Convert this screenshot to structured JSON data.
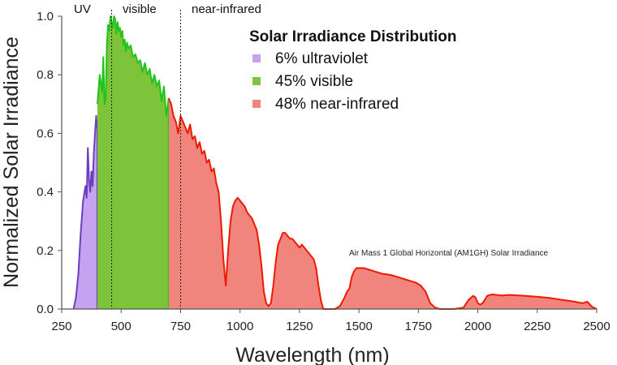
{
  "chart_data": {
    "type": "area",
    "title": "Solar Irradiance Distribution",
    "xlabel": "Wavelength (nm)",
    "ylabel": "Normalized Solar Irradiance",
    "xlim": [
      250,
      2500
    ],
    "ylim": [
      0,
      1.0
    ],
    "x_ticks": [
      "250",
      "500",
      "750",
      "1000",
      "1250",
      "1500",
      "1750",
      "2000",
      "2250",
      "2500"
    ],
    "y_ticks": [
      "0.0",
      "0.2",
      "0.4",
      "0.6",
      "0.8",
      "1.0"
    ],
    "x_tick_values": [
      250,
      500,
      750,
      1000,
      1250,
      1500,
      1750,
      2000,
      2250,
      2500
    ],
    "y_tick_values": [
      0,
      0.2,
      0.4,
      0.6,
      0.8,
      1.0
    ],
    "grid": false,
    "legend_position": "top-right",
    "region_labels": [
      {
        "text": "UV",
        "x": 330
      },
      {
        "text": "visible",
        "x": 460
      },
      {
        "text": "near-infrared",
        "x": 720
      }
    ],
    "dividers_nm": [
      460,
      750
    ],
    "annotation": "Air Mass 1 Global Horizontal (AM1GH) Solar Irradiance",
    "series": [
      {
        "name": "ultraviolet",
        "legend": "6% ultraviolet",
        "percent": "6%",
        "fill": "#c6a2f0",
        "stroke": "#6a3fbf",
        "x": [
          300,
          310,
          320,
          330,
          340,
          350,
          355,
          360,
          365,
          370,
          375,
          380,
          385,
          390,
          395,
          400
        ],
        "y": [
          0,
          0.04,
          0.12,
          0.26,
          0.37,
          0.42,
          0.38,
          0.55,
          0.44,
          0.4,
          0.47,
          0.42,
          0.53,
          0.6,
          0.66,
          0.61
        ]
      },
      {
        "name": "visible",
        "legend": "45% visible",
        "percent": "45%",
        "fill": "#7ec43a",
        "stroke": "#22c31c",
        "x": [
          400,
          410,
          420,
          425,
          430,
          435,
          440,
          445,
          450,
          455,
          460,
          465,
          470,
          475,
          480,
          485,
          490,
          495,
          500,
          505,
          510,
          515,
          520,
          525,
          530,
          540,
          550,
          560,
          570,
          580,
          590,
          600,
          610,
          620,
          630,
          640,
          650,
          660,
          670,
          680,
          690,
          700
        ],
        "y": [
          0.7,
          0.8,
          0.74,
          0.86,
          0.7,
          0.72,
          0.9,
          0.97,
          0.95,
          1.0,
          0.98,
          0.96,
          1.0,
          0.99,
          0.94,
          0.98,
          0.95,
          0.96,
          0.93,
          0.95,
          0.9,
          0.92,
          0.88,
          0.91,
          0.89,
          0.9,
          0.86,
          0.87,
          0.84,
          0.85,
          0.81,
          0.84,
          0.8,
          0.82,
          0.77,
          0.8,
          0.76,
          0.78,
          0.71,
          0.76,
          0.66,
          0.72
        ]
      },
      {
        "name": "near-infrared",
        "legend": "48% near-infrared",
        "percent": "48%",
        "fill": "#f2847e",
        "stroke": "#ee1a00",
        "x": [
          700,
          710,
          720,
          730,
          740,
          750,
          760,
          770,
          780,
          790,
          800,
          810,
          820,
          830,
          840,
          850,
          860,
          870,
          880,
          890,
          900,
          910,
          920,
          930,
          940,
          950,
          960,
          970,
          980,
          990,
          1000,
          1010,
          1020,
          1030,
          1040,
          1050,
          1060,
          1070,
          1080,
          1090,
          1100,
          1110,
          1120,
          1130,
          1140,
          1150,
          1160,
          1170,
          1180,
          1190,
          1200,
          1210,
          1220,
          1230,
          1240,
          1250,
          1260,
          1270,
          1280,
          1290,
          1300,
          1310,
          1320,
          1330,
          1340,
          1350,
          1360,
          1380,
          1400,
          1420,
          1440,
          1450,
          1460,
          1470,
          1480,
          1490,
          1500,
          1520,
          1540,
          1560,
          1580,
          1600,
          1620,
          1640,
          1660,
          1680,
          1700,
          1720,
          1740,
          1760,
          1780,
          1800,
          1820,
          1840,
          1860,
          1900,
          1940,
          1960,
          1980,
          1990,
          2000,
          2010,
          2020,
          2040,
          2060,
          2080,
          2100,
          2130,
          2160,
          2200,
          2250,
          2300,
          2350,
          2400,
          2440,
          2460,
          2480,
          2500
        ],
        "y": [
          0.72,
          0.7,
          0.66,
          0.64,
          0.6,
          0.66,
          0.64,
          0.62,
          0.6,
          0.63,
          0.58,
          0.59,
          0.55,
          0.57,
          0.53,
          0.54,
          0.5,
          0.51,
          0.47,
          0.48,
          0.43,
          0.4,
          0.3,
          0.17,
          0.08,
          0.2,
          0.3,
          0.35,
          0.37,
          0.38,
          0.37,
          0.36,
          0.35,
          0.33,
          0.32,
          0.31,
          0.29,
          0.27,
          0.22,
          0.15,
          0.06,
          0.02,
          0.01,
          0.02,
          0.08,
          0.16,
          0.22,
          0.24,
          0.26,
          0.26,
          0.25,
          0.24,
          0.24,
          0.23,
          0.22,
          0.21,
          0.22,
          0.21,
          0.2,
          0.19,
          0.18,
          0.17,
          0.14,
          0.08,
          0.03,
          0.0,
          0.0,
          0.0,
          0.0,
          0.01,
          0.04,
          0.06,
          0.07,
          0.11,
          0.13,
          0.14,
          0.14,
          0.14,
          0.135,
          0.13,
          0.125,
          0.12,
          0.118,
          0.115,
          0.11,
          0.105,
          0.1,
          0.095,
          0.09,
          0.08,
          0.06,
          0.02,
          0.005,
          0.0,
          0.0,
          0.0,
          0.005,
          0.03,
          0.045,
          0.04,
          0.02,
          0.015,
          0.02,
          0.045,
          0.05,
          0.048,
          0.046,
          0.048,
          0.047,
          0.045,
          0.042,
          0.038,
          0.032,
          0.026,
          0.02,
          0.025,
          0.008,
          0.0
        ]
      }
    ]
  }
}
